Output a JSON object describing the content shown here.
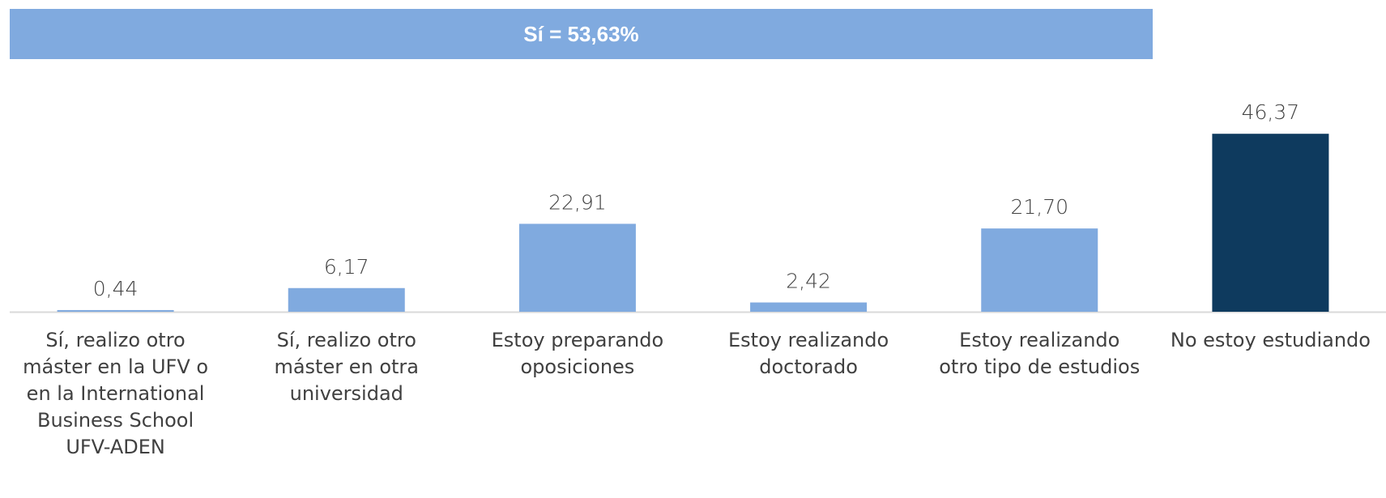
{
  "chart_data": {
    "type": "bar",
    "annotation": "Sí = 53,63%",
    "categories": [
      "Sí, realizo otro máster en la UFV o en la International Business School UFV-ADEN",
      "Sí, realizo otro máster en otra universidad",
      "Estoy  preparando oposiciones",
      "Estoy realizando doctorado",
      "Estoy realizando otro tipo de estudios",
      "No estoy estudiando"
    ],
    "values": [
      0.44,
      6.17,
      22.91,
      2.42,
      21.7,
      46.37
    ],
    "value_labels": [
      "0,44",
      "6,17",
      "22,91",
      "2,42",
      "21,70",
      "46,37"
    ],
    "colors": [
      "#80aadf",
      "#80aadf",
      "#80aadf",
      "#80aadf",
      "#80aadf",
      "#0e3a5e"
    ],
    "ylim": [
      0,
      50
    ]
  }
}
